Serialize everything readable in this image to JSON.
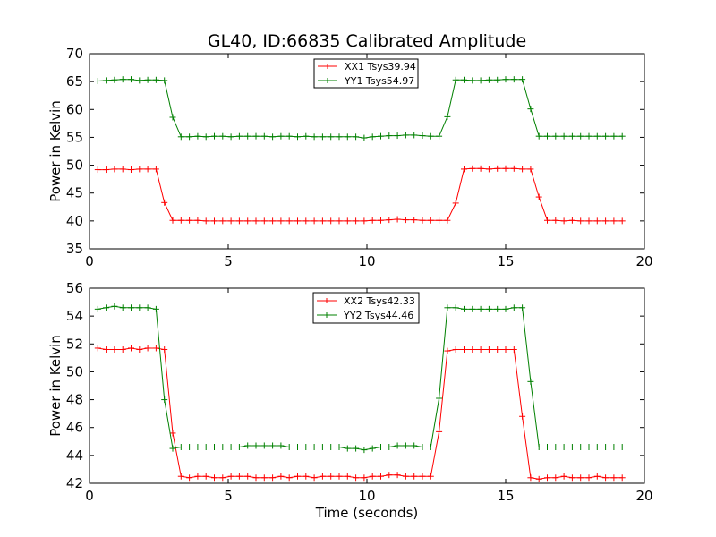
{
  "chart_data": [
    {
      "type": "line",
      "title": "GL40, ID:66835 Calibrated Amplitude",
      "xlabel": "",
      "ylabel": "Power in Kelvin",
      "xlim": [
        0,
        20
      ],
      "ylim": [
        35,
        70
      ],
      "xticks": [
        0,
        5,
        10,
        15,
        20
      ],
      "yticks": [
        35,
        40,
        45,
        50,
        55,
        60,
        65,
        70
      ],
      "legend_position": "top-center",
      "grid": false,
      "x": [
        0.3,
        0.6,
        0.9,
        1.2,
        1.5,
        1.8,
        2.1,
        2.4,
        2.7,
        3.0,
        3.3,
        3.6,
        3.9,
        4.2,
        4.5,
        4.8,
        5.1,
        5.4,
        5.7,
        6.0,
        6.3,
        6.6,
        6.9,
        7.2,
        7.5,
        7.8,
        8.1,
        8.4,
        8.7,
        9.0,
        9.3,
        9.6,
        9.9,
        10.2,
        10.5,
        10.8,
        11.1,
        11.4,
        11.7,
        12.0,
        12.3,
        12.6,
        12.9,
        13.2,
        13.5,
        13.8,
        14.1,
        14.4,
        14.7,
        15.0,
        15.3,
        15.6,
        15.9,
        16.2,
        16.5,
        16.8,
        17.1,
        17.4,
        17.7,
        18.0,
        18.3,
        18.6,
        18.9,
        19.2
      ],
      "series": [
        {
          "name": "XX1 Tsys39.94",
          "color": "#ff0000",
          "values": [
            49.2,
            49.2,
            49.3,
            49.3,
            49.2,
            49.3,
            49.3,
            49.3,
            43.3,
            40.1,
            40.1,
            40.1,
            40.1,
            40.0,
            40.0,
            40.0,
            40.0,
            40.0,
            40.0,
            40.0,
            40.0,
            40.0,
            40.0,
            40.0,
            40.0,
            40.0,
            40.0,
            40.0,
            40.0,
            40.0,
            40.0,
            40.0,
            40.0,
            40.1,
            40.1,
            40.2,
            40.3,
            40.2,
            40.2,
            40.1,
            40.1,
            40.1,
            40.1,
            43.2,
            49.3,
            49.4,
            49.4,
            49.3,
            49.4,
            49.4,
            49.4,
            49.3,
            49.3,
            44.3,
            40.1,
            40.1,
            40.0,
            40.1,
            40.0,
            40.0,
            40.0,
            40.0,
            40.0,
            40.0
          ]
        },
        {
          "name": "YY1 Tsys54.97",
          "color": "#008000",
          "values": [
            65.1,
            65.2,
            65.3,
            65.4,
            65.4,
            65.2,
            65.3,
            65.3,
            65.2,
            58.6,
            55.1,
            55.1,
            55.2,
            55.1,
            55.2,
            55.2,
            55.1,
            55.2,
            55.2,
            55.2,
            55.2,
            55.1,
            55.2,
            55.2,
            55.1,
            55.2,
            55.1,
            55.1,
            55.1,
            55.1,
            55.1,
            55.1,
            54.9,
            55.1,
            55.2,
            55.3,
            55.3,
            55.4,
            55.4,
            55.3,
            55.2,
            55.2,
            58.7,
            65.3,
            65.3,
            65.2,
            65.2,
            65.3,
            65.3,
            65.4,
            65.4,
            65.4,
            60.1,
            55.2,
            55.2,
            55.2,
            55.2,
            55.2,
            55.2,
            55.2,
            55.2,
            55.2,
            55.2,
            55.2
          ]
        }
      ]
    },
    {
      "type": "line",
      "title": "",
      "xlabel": "Time (seconds)",
      "ylabel": "Power in Kelvin",
      "xlim": [
        0,
        20
      ],
      "ylim": [
        42,
        56
      ],
      "xticks": [
        0,
        5,
        10,
        15,
        20
      ],
      "yticks": [
        42,
        44,
        46,
        48,
        50,
        52,
        54,
        56
      ],
      "legend_position": "top-center",
      "grid": false,
      "x": [
        0.3,
        0.6,
        0.9,
        1.2,
        1.5,
        1.8,
        2.1,
        2.4,
        2.7,
        3.0,
        3.3,
        3.6,
        3.9,
        4.2,
        4.5,
        4.8,
        5.1,
        5.4,
        5.7,
        6.0,
        6.3,
        6.6,
        6.9,
        7.2,
        7.5,
        7.8,
        8.1,
        8.4,
        8.7,
        9.0,
        9.3,
        9.6,
        9.9,
        10.2,
        10.5,
        10.8,
        11.1,
        11.4,
        11.7,
        12.0,
        12.3,
        12.6,
        12.9,
        13.2,
        13.5,
        13.8,
        14.1,
        14.4,
        14.7,
        15.0,
        15.3,
        15.6,
        15.9,
        16.2,
        16.5,
        16.8,
        17.1,
        17.4,
        17.7,
        18.0,
        18.3,
        18.6,
        18.9,
        19.2
      ],
      "series": [
        {
          "name": "XX2 Tsys42.33",
          "color": "#ff0000",
          "values": [
            51.7,
            51.6,
            51.6,
            51.6,
            51.7,
            51.6,
            51.7,
            51.7,
            51.6,
            45.6,
            42.5,
            42.4,
            42.5,
            42.5,
            42.4,
            42.4,
            42.5,
            42.5,
            42.5,
            42.4,
            42.4,
            42.4,
            42.5,
            42.4,
            42.5,
            42.5,
            42.4,
            42.5,
            42.5,
            42.5,
            42.5,
            42.4,
            42.4,
            42.5,
            42.5,
            42.6,
            42.6,
            42.5,
            42.5,
            42.5,
            42.5,
            45.7,
            51.5,
            51.6,
            51.6,
            51.6,
            51.6,
            51.6,
            51.6,
            51.6,
            51.6,
            46.8,
            42.4,
            42.3,
            42.4,
            42.4,
            42.5,
            42.4,
            42.4,
            42.4,
            42.5,
            42.4,
            42.4,
            42.4
          ]
        },
        {
          "name": "YY2 Tsys44.46",
          "color": "#008000",
          "values": [
            54.5,
            54.6,
            54.7,
            54.6,
            54.6,
            54.6,
            54.6,
            54.5,
            48.0,
            44.5,
            44.6,
            44.6,
            44.6,
            44.6,
            44.6,
            44.6,
            44.6,
            44.6,
            44.7,
            44.7,
            44.7,
            44.7,
            44.7,
            44.6,
            44.6,
            44.6,
            44.6,
            44.6,
            44.6,
            44.6,
            44.5,
            44.5,
            44.4,
            44.5,
            44.6,
            44.6,
            44.7,
            44.7,
            44.7,
            44.6,
            44.6,
            48.1,
            54.6,
            54.6,
            54.5,
            54.5,
            54.5,
            54.5,
            54.5,
            54.5,
            54.6,
            54.6,
            49.3,
            44.6,
            44.6,
            44.6,
            44.6,
            44.6,
            44.6,
            44.6,
            44.6,
            44.6,
            44.6,
            44.6
          ]
        }
      ]
    }
  ]
}
